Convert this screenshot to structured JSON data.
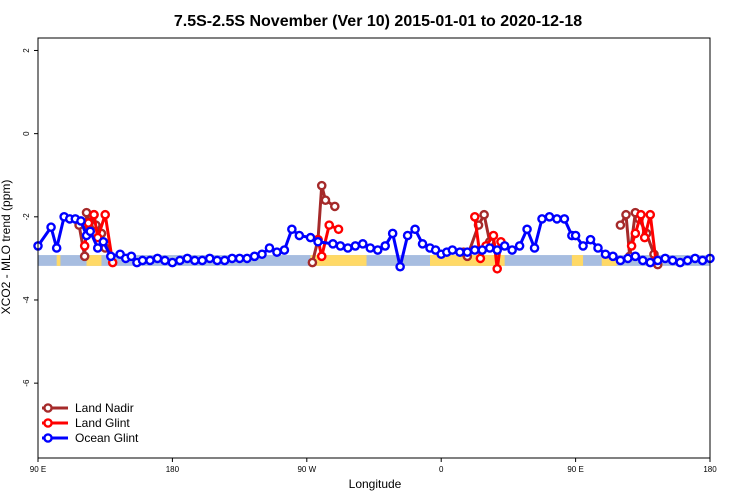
{
  "chart_data": {
    "type": "line",
    "title": "7.5S-2.5S November (Ver 10)   2015-01-01 to 2020-12-18",
    "xlabel": "Longitude",
    "ylabel": "XCO2 - MLO trend (ppm)",
    "xlim": [
      90,
      450
    ],
    "ylim": [
      -7.8,
      2.3
    ],
    "x_ticks": [
      {
        "value": 90,
        "label": "90 E"
      },
      {
        "value": 162,
        "label": "180"
      },
      {
        "value": 234,
        "label": "90 W"
      },
      {
        "value": 306,
        "label": "0"
      },
      {
        "value": 378,
        "label": "90 E"
      },
      {
        "value": 450,
        "label": "180"
      }
    ],
    "y_ticks": [
      {
        "value": 2,
        "label": "2"
      },
      {
        "value": 0,
        "label": "0"
      },
      {
        "value": -2,
        "label": "-2"
      },
      {
        "value": -4,
        "label": "-4"
      },
      {
        "value": -6,
        "label": "-6"
      }
    ],
    "grid": false,
    "legend_position": "bottom-left",
    "surface_band": {
      "y_range": [
        -3.18,
        -2.92
      ],
      "land_color": "#ffd966",
      "ocean_color": "#a7bde0",
      "land_spans": [
        [
          100,
          102
        ],
        [
          116,
          124
        ],
        [
          236,
          266
        ],
        [
          300,
          340
        ],
        [
          376,
          382
        ],
        [
          392,
          400
        ]
      ]
    },
    "series": [
      {
        "name": "Land Nadir",
        "color": "#a52a2a",
        "x": [
          112,
          115,
          116,
          118,
          120,
          121,
          124,
          126,
          237,
          240,
          242,
          244,
          249,
          318,
          320,
          326,
          329,
          332,
          402,
          405,
          407,
          410,
          412,
          416,
          420,
          422
        ],
        "y": [
          -2.2,
          -2.95,
          -1.9,
          -2.15,
          -1.95,
          -2.2,
          -2.4,
          -2.75,
          -3.1,
          -2.55,
          -1.25,
          -1.6,
          -1.75,
          -2.85,
          -2.95,
          -2.2,
          -1.95,
          -2.6,
          -2.2,
          -1.95,
          -2.95,
          -1.9,
          -2.05,
          -2.4,
          -2.9,
          -3.15
        ]
      },
      {
        "name": "Land Glint",
        "color": "#ff0000",
        "x": [
          115,
          117,
          120,
          122,
          126,
          130,
          240,
          242,
          246,
          251,
          324,
          327,
          330,
          334,
          336,
          338,
          408,
          410,
          413,
          415,
          418,
          421
        ],
        "y": [
          -2.7,
          -2.15,
          -1.95,
          -2.5,
          -1.95,
          -3.1,
          -2.55,
          -2.95,
          -2.2,
          -2.3,
          -2.0,
          -3.0,
          -2.7,
          -2.45,
          -3.25,
          -2.6,
          -2.7,
          -2.4,
          -1.95,
          -2.5,
          -1.95,
          -3.05
        ]
      },
      {
        "name": "Ocean Glint",
        "color": "#0000ff",
        "x": [
          90,
          97,
          100,
          104,
          107,
          110,
          113,
          116,
          118,
          122,
          125,
          129,
          134,
          137,
          140,
          143,
          146,
          150,
          154,
          158,
          162,
          166,
          170,
          174,
          178,
          182,
          186,
          190,
          194,
          198,
          202,
          206,
          210,
          214,
          218,
          222,
          226,
          230,
          236,
          240,
          248,
          252,
          256,
          260,
          264,
          268,
          272,
          276,
          280,
          284,
          288,
          292,
          296,
          300,
          303,
          306,
          309,
          312,
          316,
          320,
          324,
          328,
          332,
          336,
          340,
          344,
          348,
          352,
          356,
          360,
          364,
          368,
          372,
          376,
          378,
          382,
          386,
          390,
          394,
          398,
          402,
          406,
          410,
          414,
          418,
          422,
          426,
          430,
          434,
          438,
          442,
          446,
          450
        ],
        "y": [
          -2.7,
          -2.25,
          -2.75,
          -2.0,
          -2.05,
          -2.05,
          -2.1,
          -2.45,
          -2.35,
          -2.75,
          -2.6,
          -2.95,
          -2.9,
          -3.0,
          -2.95,
          -3.1,
          -3.05,
          -3.05,
          -3.0,
          -3.05,
          -3.1,
          -3.05,
          -3.0,
          -3.05,
          -3.05,
          -3.0,
          -3.05,
          -3.05,
          -3.0,
          -3.0,
          -3.0,
          -2.95,
          -2.9,
          -2.75,
          -2.85,
          -2.8,
          -2.3,
          -2.45,
          -2.5,
          -2.6,
          -2.65,
          -2.7,
          -2.75,
          -2.7,
          -2.65,
          -2.75,
          -2.8,
          -2.7,
          -2.4,
          -3.2,
          -2.45,
          -2.3,
          -2.65,
          -2.75,
          -2.8,
          -2.9,
          -2.85,
          -2.8,
          -2.85,
          -2.85,
          -2.8,
          -2.8,
          -2.75,
          -2.8,
          -2.7,
          -2.8,
          -2.7,
          -2.3,
          -2.75,
          -2.05,
          -2.0,
          -2.05,
          -2.05,
          -2.45,
          -2.45,
          -2.7,
          -2.55,
          -2.75,
          -2.9,
          -2.95,
          -3.05,
          -3.0,
          -2.95,
          -3.05,
          -3.1,
          -3.05,
          -3.0,
          -3.05,
          -3.1,
          -3.05,
          -3.0,
          -3.05,
          -3.0
        ]
      }
    ]
  }
}
